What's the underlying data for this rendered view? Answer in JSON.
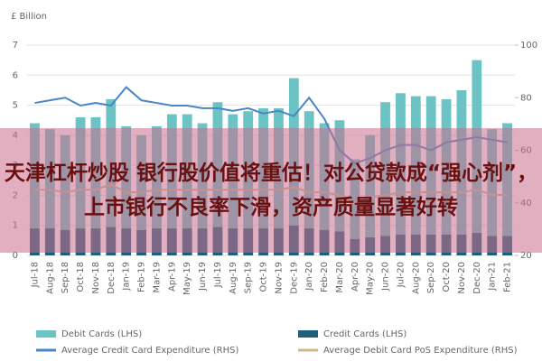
{
  "headline": "天津杠杆炒股 银行股价值将重估！对公贷款成“强心剂”，上市银行不良率下滑，资产质量显著好转",
  "chart_data": {
    "type": "bar_line",
    "y_label": "£ Billion",
    "categories": [
      "Jul-18",
      "Aug-18",
      "Sep-18",
      "Oct-18",
      "Nov-18",
      "Dec-18",
      "Jan-19",
      "Feb-19",
      "Mar-19",
      "Apr-19",
      "May-19",
      "Jun-19",
      "Jul-19",
      "Aug-19",
      "Sep-19",
      "Oct-19",
      "Nov-19",
      "Dec-19",
      "Jan-20",
      "Feb-20",
      "Mar-20",
      "Apr-20",
      "May-20",
      "Jun-20",
      "Jul-20",
      "Aug-20",
      "Sep-20",
      "Oct-20",
      "Nov-20",
      "Dec-20",
      "Jan-21",
      "Feb-21"
    ],
    "ylim": [
      0,
      7
    ],
    "yticks": [
      0,
      1,
      2,
      3,
      4,
      5,
      6,
      7
    ],
    "y2lim": [
      20,
      100
    ],
    "y2ticks": [
      20,
      40,
      60,
      80,
      100
    ],
    "series": [
      {
        "name": "Credit Cards (LHS)",
        "type": "bar",
        "color": "#1f5f7a",
        "values": [
          0.9,
          0.9,
          0.85,
          0.9,
          0.9,
          0.95,
          0.9,
          0.85,
          0.9,
          0.9,
          0.9,
          0.9,
          0.95,
          0.9,
          0.9,
          0.9,
          0.9,
          1.0,
          0.9,
          0.85,
          0.8,
          0.55,
          0.6,
          0.65,
          0.7,
          0.7,
          0.7,
          0.7,
          0.7,
          0.75,
          0.65,
          0.65
        ]
      },
      {
        "name": "Debit Cards (LHS)",
        "type": "bar",
        "color": "#6cc3c3",
        "values": [
          3.5,
          3.3,
          3.15,
          3.7,
          3.7,
          4.25,
          3.4,
          3.15,
          3.4,
          3.8,
          3.8,
          3.5,
          4.15,
          3.8,
          3.9,
          4.0,
          4.0,
          4.9,
          3.9,
          3.55,
          3.7,
          2.65,
          3.4,
          4.45,
          4.7,
          4.6,
          4.6,
          4.5,
          4.8,
          5.75,
          3.55,
          3.75
        ]
      },
      {
        "name": "Average Credit Card Expenditure (RHS)",
        "type": "line",
        "axis": "y2",
        "color": "#4a86c5",
        "values": [
          78,
          79,
          80,
          77,
          78,
          77,
          84,
          79,
          78,
          77,
          77,
          76,
          76,
          75,
          76,
          74,
          75,
          73,
          80,
          72,
          60,
          55,
          57,
          60,
          62,
          62,
          60,
          63,
          64,
          65,
          64,
          63
        ]
      },
      {
        "name": "Average Debit Card PoS Expenditure (RHS)",
        "type": "line",
        "axis": "y2",
        "color": "#c9b98d",
        "values": [
          45,
          45,
          44,
          45,
          45,
          47,
          44,
          44,
          45,
          45,
          45,
          45,
          45,
          45,
          45,
          45,
          45,
          46,
          44,
          44,
          43,
          40,
          42,
          43,
          44,
          44,
          44,
          44,
          44,
          45,
          43,
          43
        ]
      }
    ]
  }
}
